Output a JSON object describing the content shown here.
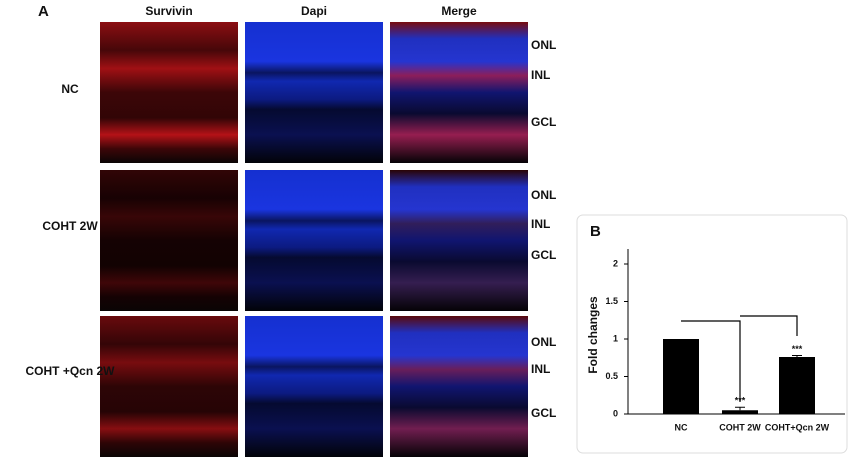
{
  "panel_a": {
    "label": "A",
    "columns": [
      "Survivin",
      "Dapi",
      "Merge"
    ],
    "rows": [
      {
        "label": "NC",
        "layers": [
          "ONL",
          "INL",
          "GCL"
        ]
      },
      {
        "label": "COHT 2W",
        "layers": [
          "ONL",
          "INL",
          "GCL"
        ]
      },
      {
        "label": "COHT +Qcn 2W",
        "layers": [
          "ONL",
          "INL",
          "GCL"
        ]
      }
    ]
  },
  "chart_data": {
    "type": "bar",
    "panel_label": "B",
    "y_label": "Fold changes",
    "categories": [
      "NC",
      "COHT 2W",
      "COHT+Qcn 2W"
    ],
    "values": [
      1.0,
      0.05,
      0.76
    ],
    "errors": [
      null,
      0.04,
      0.02
    ],
    "significance": [
      null,
      "***",
      "***"
    ],
    "color": "#000000",
    "ylim": [
      0,
      2.2
    ],
    "yticks": [
      0,
      0.5,
      1,
      1.5,
      2
    ]
  }
}
